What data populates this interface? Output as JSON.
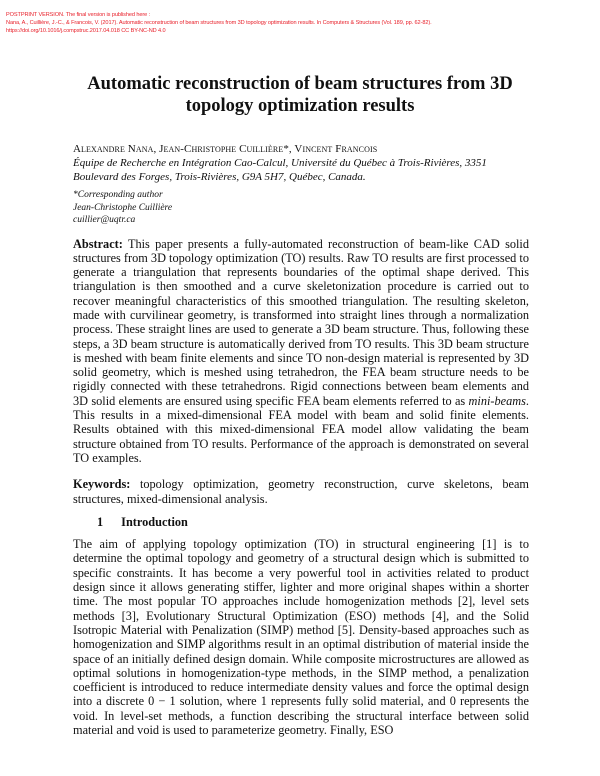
{
  "notice": {
    "line1": "POSTPRINT VERSION. The final version is published here :",
    "line2": "Nana, A., Cuillière, J.-C., & Francois, V. (2017). Automatic reconstruction of beam structures from 3D topology optimization results. In Computers & Structures (Vol. 189, pp. 62-82).",
    "line3": "https://doi.org/10.1016/j.compstruc.2017.04.018 CC BY-NC-ND 4.0"
  },
  "title": "Automatic reconstruction of beam structures from 3D topology optimization results",
  "authors": "Alexandre Nana, Jean-Christophe Cuillière*, Vincent Francois",
  "affiliation": "Équipe de Recherche en Intégration Cao-Calcul, Université du Québec à Trois-Rivières, 3351 Boulevard des Forges, Trois-Rivières, G9A 5H7, Québec, Canada.",
  "corresponding": {
    "label": "*Corresponding author",
    "name": "Jean-Christophe Cuillière",
    "email": "cuillier@uqtr.ca"
  },
  "abstract": {
    "label": "Abstract:",
    "text_before": " This paper presents a fully-automated reconstruction of beam-like CAD solid structures from 3D topology optimization (TO) results. Raw TO results are first processed to generate a triangulation that represents boundaries of the optimal shape derived. This triangulation is then smoothed and a curve skeletonization procedure is carried out to recover meaningful characteristics of this smoothed triangulation. The resulting skeleton, made with curvilinear geometry, is transformed into straight lines through a normalization process. These straight lines are used to generate a 3D beam structure. Thus, following these steps, a 3D beam structure is automatically derived from TO results. This 3D beam structure is meshed with beam finite elements and since TO non-design material is represented by 3D solid geometry, which is meshed using tetrahedron, the FEA beam structure needs to be rigidly connected with these tetrahedrons. Rigid connections between beam elements and 3D solid elements are ensured using specific FEA beam elements referred to as ",
    "emphasis": "mini-beams",
    "text_after": ". This results in a mixed-dimensional FEA model with beam and solid finite elements. Results obtained with this mixed-dimensional FEA model allow validating the beam structure obtained from TO results. Performance of the approach is demonstrated on several TO examples."
  },
  "keywords": {
    "label": "Keywords:",
    "text": " topology optimization, geometry reconstruction, curve skeletons, beam structures, mixed-dimensional analysis."
  },
  "section": {
    "number": "1",
    "title": "Introduction"
  },
  "intro": "The aim of applying topology optimization (TO) in structural engineering [1] is to determine the optimal topology and geometry of a structural design which is submitted to specific constraints. It has become a very powerful tool in activities related to product design since it allows generating stiffer, lighter and more original shapes within a shorter time. The most popular TO approaches include homogenization methods [2], level sets methods [3], Evolutionary Structural Optimization (ESO) methods [4], and the Solid Isotropic Material with Penalization (SIMP) method [5]. Density-based approaches such as homogenization and SIMP algorithms result in an optimal distribution of material inside the space of an initially defined design domain. While composite microstructures are allowed as optimal solutions in homogenization-type methods, in the SIMP method, a penalization coefficient is introduced to reduce intermediate density values and force the optimal design into a discrete 0 − 1 solution, where 1 represents fully solid material, and 0 represents the void. In level-set methods, a function describing the structural interface between solid material and void is used to parameterize geometry. Finally, ESO"
}
